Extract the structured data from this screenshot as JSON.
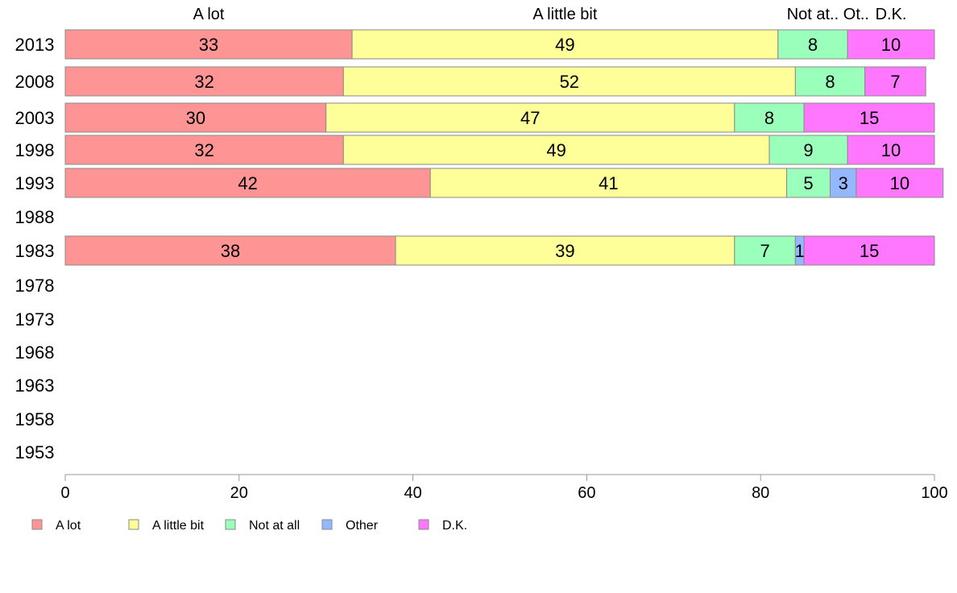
{
  "chart_data": {
    "type": "bar",
    "orientation": "horizontal",
    "stacked": true,
    "categories": [
      "2013",
      "2008",
      "2003",
      "1998",
      "1993",
      "1988",
      "1983",
      "1978",
      "1973",
      "1968",
      "1963",
      "1958",
      "1953"
    ],
    "series": [
      {
        "name": "A lot",
        "color": "#ff9494",
        "values": [
          33,
          32,
          30,
          32,
          42,
          null,
          38,
          null,
          null,
          null,
          null,
          null,
          null
        ]
      },
      {
        "name": "A little bit",
        "color": "#ffff99",
        "values": [
          49,
          52,
          47,
          49,
          41,
          null,
          39,
          null,
          null,
          null,
          null,
          null,
          null
        ]
      },
      {
        "name": "Not at all",
        "color": "#99ffbb",
        "values": [
          8,
          8,
          8,
          9,
          5,
          null,
          7,
          null,
          null,
          null,
          null,
          null,
          null
        ]
      },
      {
        "name": "Other",
        "color": "#94b8ff",
        "values": [
          0,
          0,
          0,
          0,
          3,
          null,
          1,
          null,
          null,
          null,
          null,
          null,
          null
        ]
      },
      {
        "name": "D.K.",
        "color": "#ff77ff",
        "values": [
          10,
          7,
          15,
          10,
          10,
          null,
          15,
          null,
          null,
          null,
          null,
          null,
          null
        ]
      }
    ],
    "top_labels": [
      {
        "text": "A lot",
        "at": 16.5
      },
      {
        "text": "A little bit",
        "at": 57.5
      },
      {
        "text": "Not at..",
        "at": 86.0
      },
      {
        "text": "Ot..",
        "at": 91.0
      },
      {
        "text": "D.K.",
        "at": 95.0
      }
    ],
    "x_ticks": [
      "0",
      "20",
      "40",
      "60",
      "80",
      "100"
    ],
    "xlim": [
      0,
      100
    ],
    "title": "",
    "xlabel": "",
    "ylabel": "",
    "grid": false,
    "legend_position": "bottom-left"
  }
}
